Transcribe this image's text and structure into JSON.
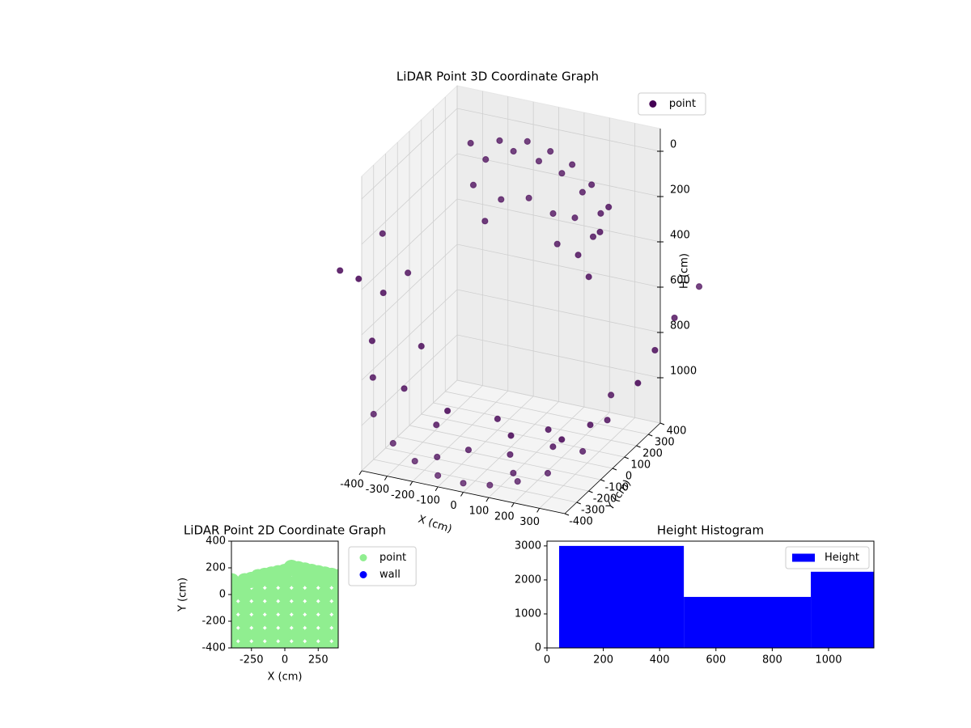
{
  "chart_data": [
    {
      "type": "scatter3d",
      "title": "LiDAR Point 3D Coordinate Graph",
      "xlabel": "X (cm)",
      "ylabel": "Y (cm)",
      "zlabel": "H (cm)",
      "xlim": [
        -400,
        400
      ],
      "ylim": [
        -400,
        400
      ],
      "zlim": [
        1200,
        -100
      ],
      "xticks": [
        -400,
        -300,
        -200,
        -100,
        0,
        100,
        200,
        300
      ],
      "yticks": [
        -400,
        -300,
        -200,
        -100,
        0,
        100,
        200,
        300,
        400
      ],
      "zticks": [
        0,
        200,
        400,
        600,
        800,
        1000
      ],
      "grid": true,
      "legend": "upper right",
      "series": [
        {
          "name": "point",
          "color": "#440154",
          "x": [
            -300,
            -250,
            -200,
            -150,
            -100,
            -50,
            0,
            50,
            100,
            150,
            200,
            250,
            300,
            -280,
            -180,
            -80,
            20,
            120,
            220,
            280,
            -220,
            60,
            180,
            250,
            -600,
            -550,
            -500,
            -450,
            -400,
            -300,
            -200,
            -100,
            0,
            100,
            200,
            300,
            400,
            450,
            500,
            520,
            -500,
            -350,
            -200,
            -50,
            100,
            250,
            350,
            0,
            -100,
            100,
            200,
            -250,
            -400,
            300,
            -600,
            -650,
            550,
            600,
            -150,
            150
          ],
          "y": [
            300,
            320,
            330,
            340,
            350,
            340,
            330,
            320,
            300,
            280,
            250,
            220,
            180,
            280,
            300,
            320,
            310,
            280,
            220,
            150,
            250,
            260,
            180,
            120,
            0,
            100,
            -100,
            -200,
            -300,
            -350,
            -380,
            -400,
            -400,
            -390,
            -370,
            -330,
            -250,
            -150,
            0,
            100,
            200,
            -150,
            -200,
            -250,
            -220,
            -180,
            -80,
            0,
            100,
            100,
            0,
            0,
            100,
            200,
            200,
            -50,
            200,
            300,
            -300,
            -300
          ],
          "z": [
            80,
            150,
            60,
            100,
            50,
            120,
            60,
            140,
            80,
            180,
            120,
            220,
            160,
            250,
            300,
            280,
            320,
            300,
            330,
            260,
            380,
            420,
            400,
            450,
            600,
            700,
            800,
            900,
            1000,
            1080,
            1120,
            1150,
            1160,
            1150,
            1120,
            1080,
            1000,
            900,
            800,
            700,
            650,
            950,
            1050,
            1100,
            1100,
            1050,
            980,
            1150,
            1150,
            1150,
            1120,
            1100,
            900,
            1000,
            500,
            550,
            600,
            500,
            1130,
            1130
          ]
        }
      ]
    },
    {
      "type": "scatter",
      "title": "LiDAR Point 2D Coordinate Graph",
      "xlabel": "X (cm)",
      "ylabel": "Y (cm)",
      "xlim": [
        -400,
        400
      ],
      "ylim": [
        -400,
        400
      ],
      "xticks": [
        -250,
        0,
        250
      ],
      "yticks": [
        -400,
        -200,
        0,
        200,
        400
      ],
      "legend": "outside",
      "series": [
        {
          "name": "point",
          "color": "#90ee90",
          "x": [
            -400,
            -300,
            -200,
            -100,
            0,
            100,
            200,
            300,
            400,
            -400,
            -300,
            -200,
            -100,
            0,
            100,
            200,
            300,
            400,
            -400,
            -300,
            -200,
            -100,
            0,
            100,
            200,
            300,
            400,
            -400,
            -300,
            -200,
            -100,
            0,
            100,
            200,
            300,
            400,
            -400,
            -300,
            -200,
            -100,
            0,
            100,
            200,
            300,
            400,
            -400,
            -300,
            -200,
            -100,
            0,
            100,
            200,
            300,
            400,
            -400,
            -350,
            -300,
            -250,
            -200,
            -150,
            -100,
            -50,
            0,
            50,
            100,
            150,
            200,
            250,
            300,
            350,
            400
          ],
          "y": [
            -400,
            -400,
            -400,
            -400,
            -400,
            -400,
            -400,
            -400,
            -400,
            -300,
            -300,
            -300,
            -300,
            -300,
            -300,
            -300,
            -300,
            -300,
            -200,
            -200,
            -200,
            -200,
            -200,
            -200,
            -200,
            -200,
            -200,
            -100,
            -100,
            -100,
            -100,
            -100,
            -100,
            -100,
            -100,
            -100,
            0,
            0,
            0,
            0,
            0,
            0,
            0,
            0,
            0,
            100,
            100,
            100,
            100,
            100,
            100,
            100,
            100,
            100,
            60,
            70,
            90,
            110,
            130,
            140,
            150,
            160,
            170,
            200,
            190,
            180,
            170,
            160,
            150,
            140,
            130
          ]
        },
        {
          "name": "wall",
          "color": "#0000ff",
          "x": [],
          "y": []
        }
      ]
    },
    {
      "type": "histogram",
      "title": "Height Histogram",
      "bins": [
        43,
        486,
        937,
        1161
      ],
      "xlim": [
        0,
        1161
      ],
      "ylim": [
        0,
        3140
      ],
      "xticks": [
        0,
        200,
        400,
        600,
        800,
        1000
      ],
      "yticks": [
        0,
        1000,
        2000,
        3000
      ],
      "legend": "upper right",
      "series": [
        {
          "name": "Height",
          "color": "#0000ff",
          "values": [
            3000,
            1500,
            2240
          ]
        }
      ]
    }
  ]
}
